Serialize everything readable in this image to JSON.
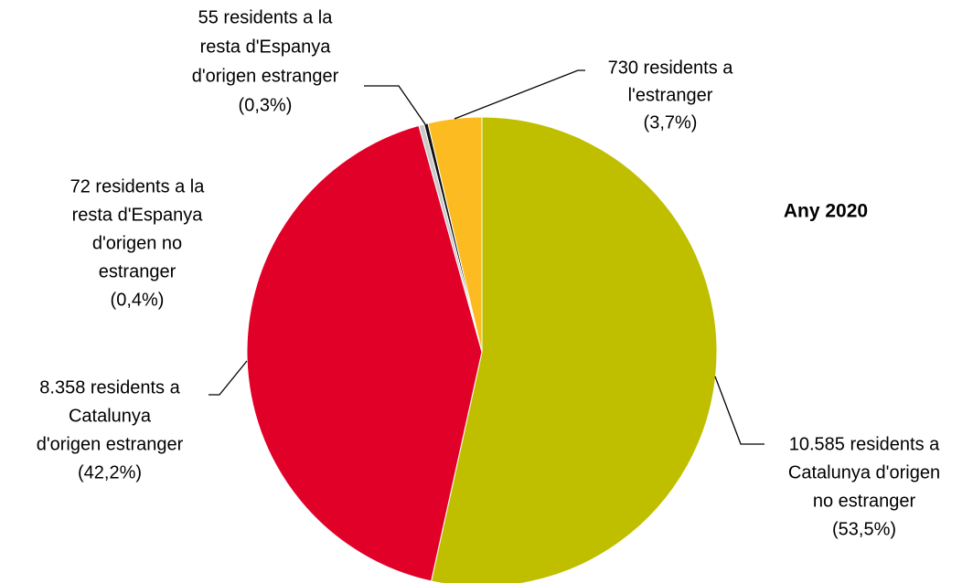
{
  "chart_data": {
    "type": "pie",
    "title": "Any 2020",
    "values": [
      10585,
      8358,
      72,
      55,
      730
    ],
    "colors": [
      "#bfbf00",
      "#e10028",
      "#c9c9c9",
      "#111111",
      "#fbbb21"
    ],
    "value_labels": [
      [
        "10.585 residents a",
        "Catalunya d'origen",
        "no estranger",
        "(53,5%)"
      ],
      [
        "8.358 residents a",
        "Catalunya",
        "d'origen estranger",
        "(42,2%)"
      ],
      [
        "72 residents a la",
        "resta d'Espanya",
        "d'origen no",
        "estranger",
        "(0,4%)"
      ],
      [
        "55 residents a la",
        "resta d'Espanya",
        "d'origen estranger",
        "(0,3%)"
      ],
      [
        "730 residents a",
        "l'estranger",
        "(3,7%)"
      ]
    ]
  }
}
